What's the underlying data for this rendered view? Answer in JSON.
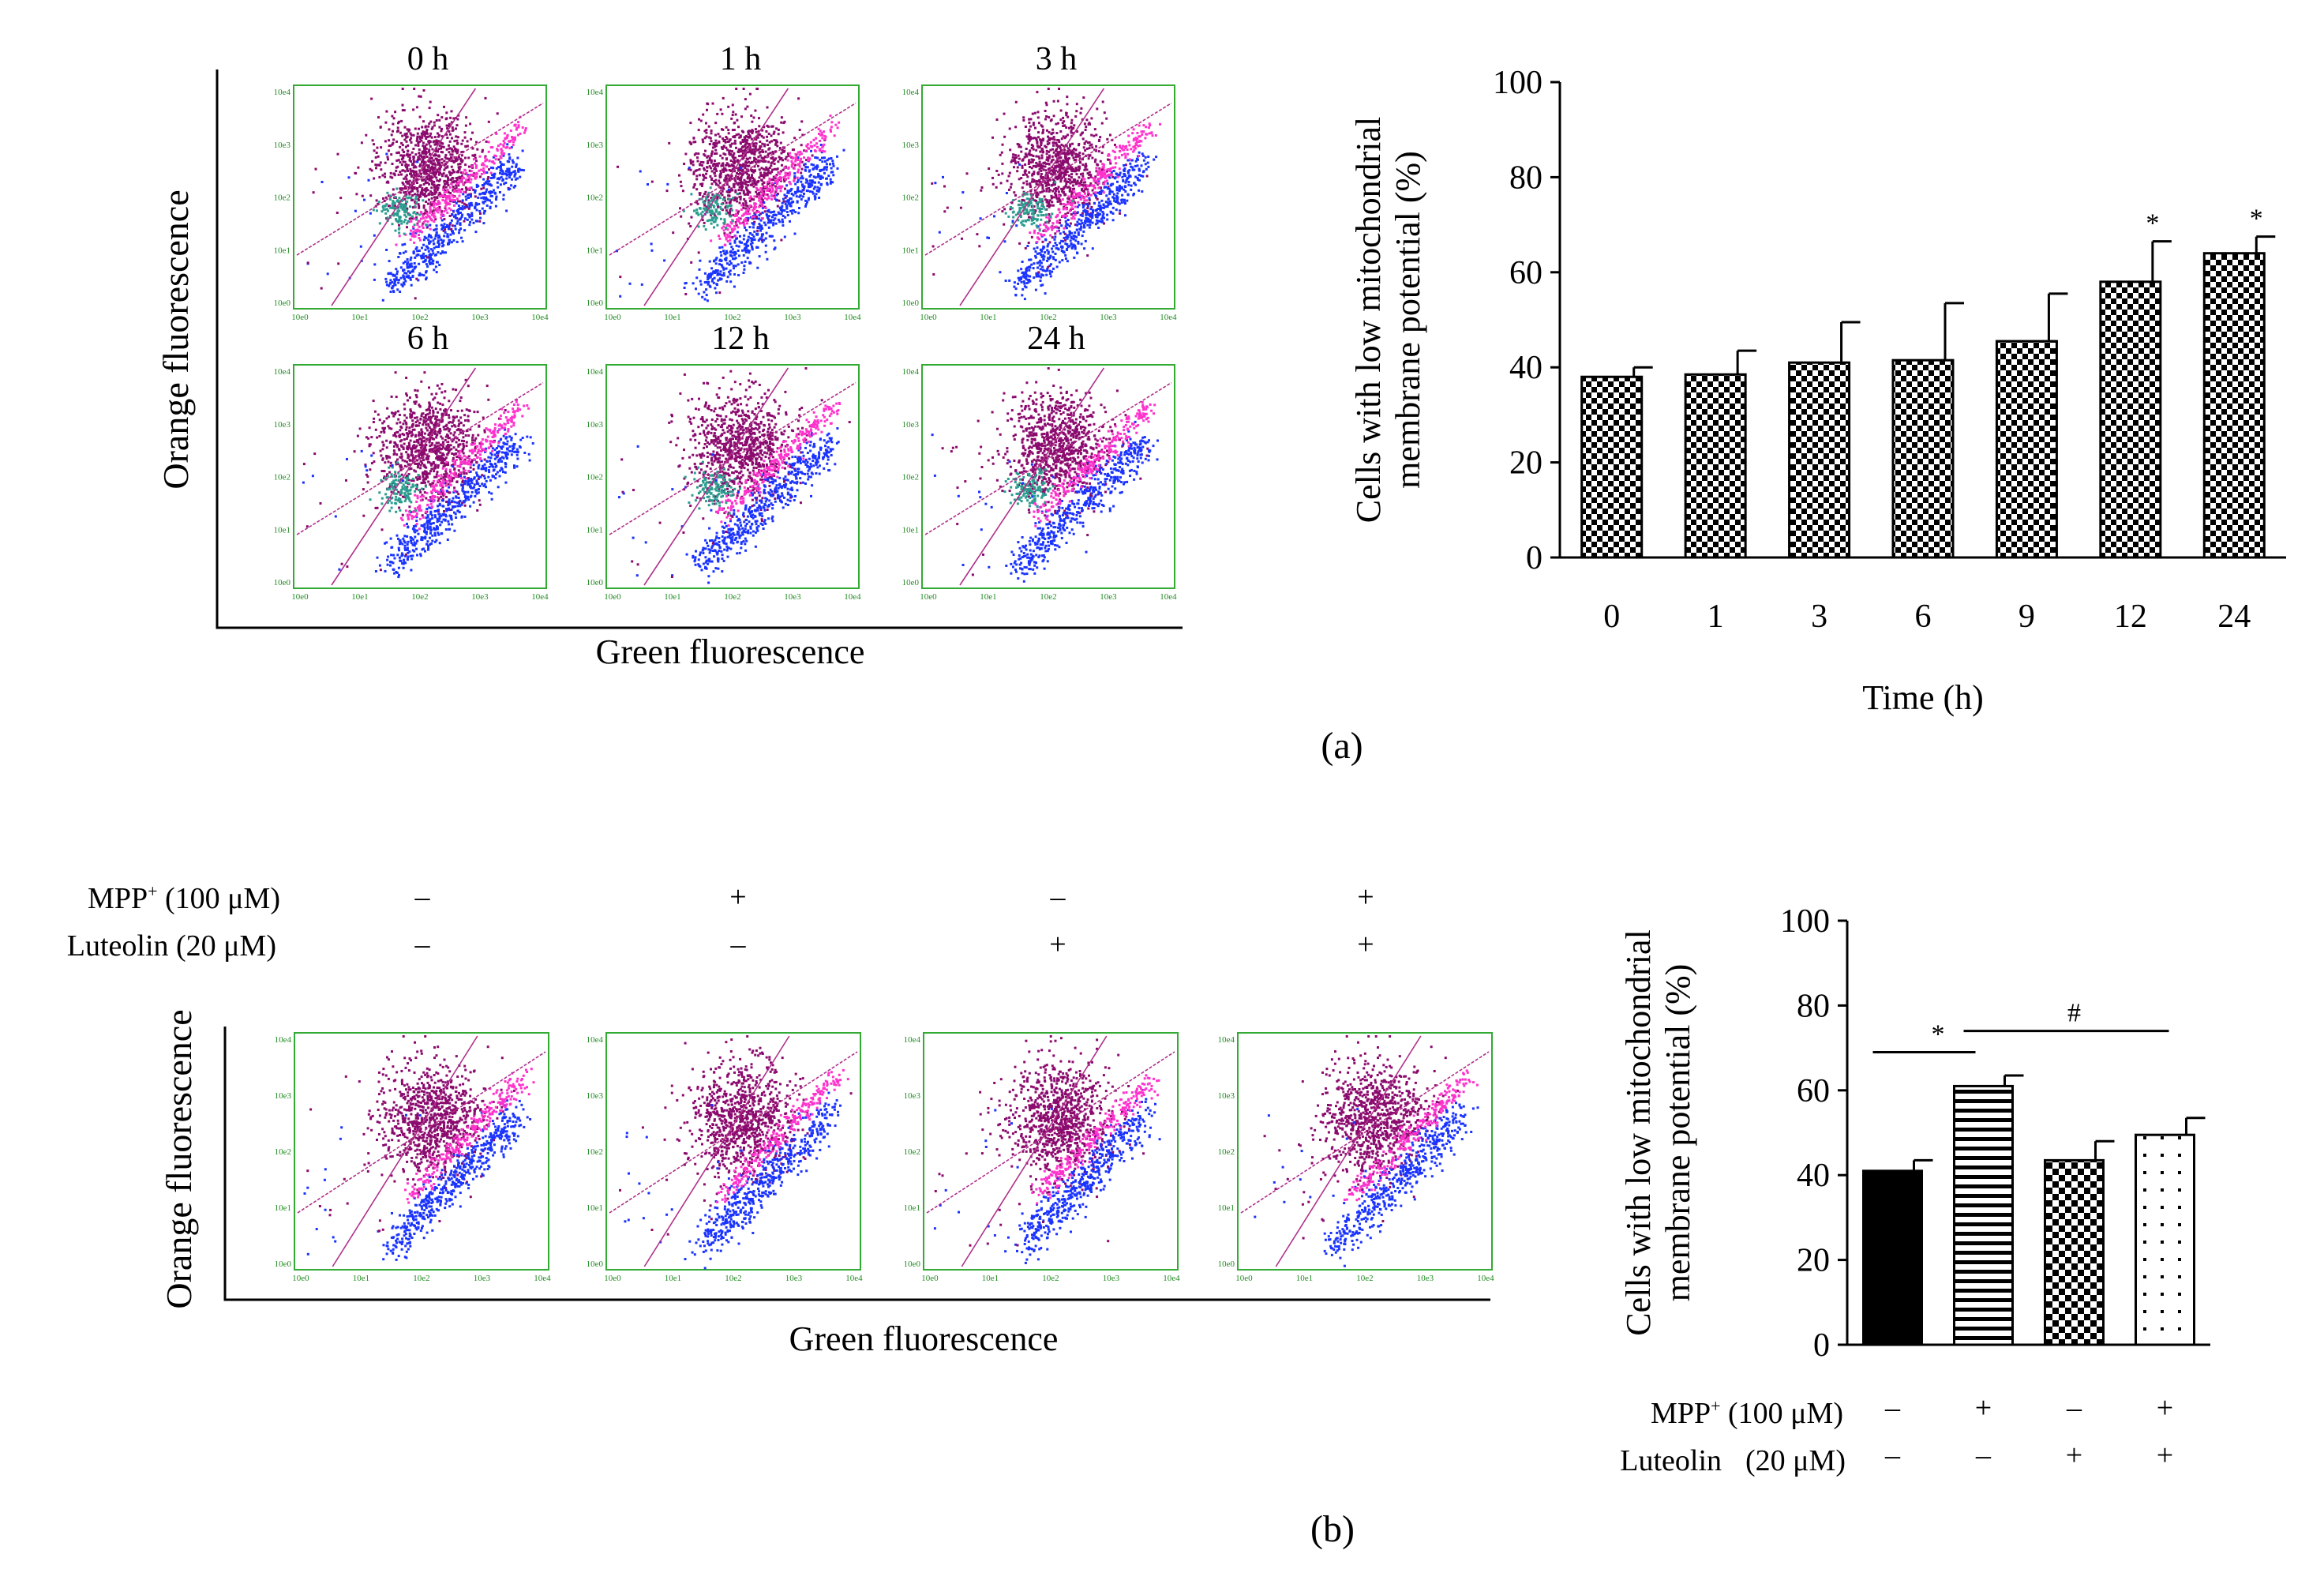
{
  "panel_a": {
    "panel_label": "(a)",
    "flow_axes": {
      "y_label": "Orange fluorescence",
      "x_label": "Green fluorescence"
    },
    "flow_plots": [
      {
        "title": "0 h"
      },
      {
        "title": "1 h"
      },
      {
        "title": "3 h"
      },
      {
        "title": "6 h"
      },
      {
        "title": "12 h"
      },
      {
        "title": "24 h"
      }
    ],
    "flow_ticks": [
      "10e0",
      "10e1",
      "10e2",
      "10e3",
      "10e4"
    ]
  },
  "panel_b": {
    "panel_label": "(b)",
    "flow_axes": {
      "y_label": "Orange fluorescence",
      "x_label": "Green fluorescence"
    },
    "treatment_labels": {
      "mpp": "MPP",
      "mpp_sup": "+",
      "mpp_conc": " (100 μM)",
      "luteolin": "Luteolin (20 μM)",
      "luteolin_short": "Luteolin",
      "luteolin_conc": "(20 μM)"
    },
    "treatments": {
      "mpp": [
        "–",
        "+",
        "–",
        "+"
      ],
      "luteolin": [
        "–",
        "–",
        "+",
        "+"
      ]
    },
    "flow_ticks": [
      "10e0",
      "10e1",
      "10e2",
      "10e3",
      "10e4"
    ]
  },
  "colors": {
    "bar_fill": "#000000",
    "flow_border": "#33aa33",
    "flow_tick": "#228b22",
    "dot_purple": "#8b0a6e",
    "dot_pink": "#ff33cc",
    "dot_blue": "#1a33ff",
    "dot_teal": "#2a9d8f",
    "gate_line": "#b0308a"
  },
  "chart_data": [
    {
      "type": "bar",
      "title": "",
      "xlabel": "Time (h)",
      "ylabel": "Cells with low mitochondrial membrane potential (%)",
      "categories": [
        "0",
        "1",
        "3",
        "6",
        "9",
        "12",
        "24"
      ],
      "values": [
        38,
        38.5,
        41,
        41.5,
        45.5,
        58,
        64
      ],
      "errors": [
        2,
        5,
        8.5,
        12,
        10,
        8.5,
        3.5
      ],
      "annotations": [
        "",
        "",
        "",
        "",
        "",
        "*",
        "*"
      ],
      "ylim": [
        0,
        100
      ],
      "yticks": [
        "0",
        "20",
        "40",
        "60",
        "80",
        "100"
      ],
      "pattern": "checkerboard"
    },
    {
      "type": "bar",
      "title": "",
      "xlabel": "",
      "ylabel": "Cells with low mitochondrial membrane potential (%)",
      "categories": [
        "MPP+ – / Luteolin –",
        "MPP+ + / Luteolin –",
        "MPP+ – / Luteolin +",
        "MPP+ + / Luteolin +"
      ],
      "values": [
        41,
        61,
        43.5,
        49.5
      ],
      "errors": [
        2.5,
        2.5,
        4.5,
        4
      ],
      "patterns": [
        "solid",
        "horizontal-stripes",
        "checker",
        "dots"
      ],
      "ylim": [
        0,
        100
      ],
      "yticks": [
        "0",
        "20",
        "40",
        "60",
        "80",
        "100"
      ],
      "significance": [
        {
          "from": 0,
          "to": 1,
          "label": "*"
        },
        {
          "from": 1,
          "to": 3,
          "label": "#"
        }
      ]
    }
  ]
}
